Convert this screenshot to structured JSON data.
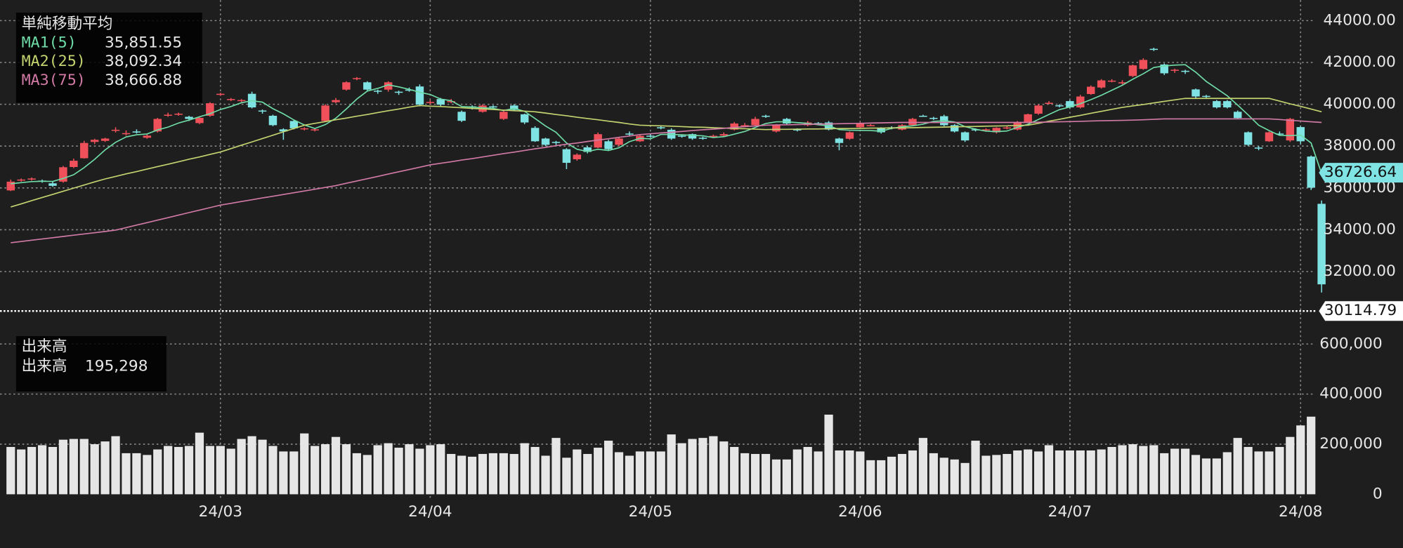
{
  "chart_data": {
    "type": "candlestick",
    "categories": [
      null,
      null,
      null,
      null,
      null,
      null,
      null,
      null,
      null,
      null,
      null,
      null,
      null,
      null,
      null,
      null,
      null,
      null,
      null,
      null,
      "24/03",
      null,
      null,
      null,
      null,
      null,
      null,
      null,
      null,
      null,
      null,
      null,
      null,
      null,
      null,
      null,
      null,
      null,
      null,
      null,
      "24/04",
      null,
      null,
      null,
      null,
      null,
      null,
      null,
      null,
      null,
      null,
      null,
      null,
      null,
      null,
      null,
      null,
      null,
      null,
      null,
      null,
      "24/05",
      null,
      null,
      null,
      null,
      null,
      null,
      null,
      null,
      null,
      null,
      null,
      null,
      null,
      null,
      null,
      null,
      null,
      null,
      null,
      "24/06",
      null,
      null,
      null,
      null,
      null,
      null,
      null,
      null,
      null,
      null,
      null,
      null,
      null,
      null,
      null,
      null,
      null,
      null,
      null,
      "24/07",
      null,
      null,
      null,
      null,
      null,
      null,
      null,
      null,
      null,
      null,
      null,
      null,
      null,
      null,
      null,
      null,
      null,
      null,
      null,
      null,
      null,
      "24/08",
      null,
      null
    ],
    "open": [
      35880,
      36350,
      36400,
      36350,
      36220,
      36300,
      37000,
      37420,
      38200,
      38250,
      38750,
      38600,
      38700,
      38400,
      38700,
      39450,
      39500,
      39400,
      39100,
      39450,
      40450,
      40200,
      40150,
      40500,
      39700,
      39450,
      38800,
      39200,
      38800,
      38750,
      39200,
      40100,
      40700,
      41200,
      41050,
      40650,
      40700,
      40600,
      40700,
      40850,
      40100,
      40250,
      40150,
      39640,
      39900,
      39640,
      39900,
      39300,
      39940,
      39520,
      38870,
      38360,
      38200,
      37850,
      37370,
      37940,
      37930,
      38230,
      38060,
      38600,
      38230,
      38500,
      38900,
      38780,
      38500,
      38570,
      38400,
      38450,
      38500,
      38790,
      39000,
      39000,
      39450,
      38700,
      39300,
      38800,
      39000,
      39100,
      39130,
      38360,
      38350,
      38900,
      39000,
      38870,
      38900,
      38790,
      39000,
      39450,
      39350,
      39430,
      39000,
      38660,
      38800,
      38780,
      38660,
      38870,
      38790,
      39130,
      39550,
      40050,
      39950,
      40150,
      39850,
      40490,
      40800,
      41100,
      41000,
      41350,
      41690,
      42650,
      41900,
      41600,
      41600,
      40710,
      40400,
      40150,
      40150,
      39640,
      38660,
      37930,
      38230,
      38600,
      38270,
      38910,
      37500,
      35240
    ],
    "high": [
      36400,
      36450,
      36500,
      36400,
      36300,
      37050,
      37400,
      38250,
      38350,
      38400,
      38900,
      38750,
      38800,
      38600,
      39350,
      39600,
      39600,
      39450,
      39400,
      40100,
      40550,
      40300,
      40250,
      40600,
      39750,
      39500,
      38850,
      39250,
      38900,
      38850,
      40000,
      40300,
      41100,
      41300,
      41100,
      40700,
      41100,
      40650,
      40800,
      40950,
      40200,
      40300,
      40250,
      39700,
      39950,
      40000,
      39950,
      39700,
      40000,
      39550,
      38950,
      38400,
      38250,
      37900,
      37650,
      38000,
      38650,
      38300,
      38400,
      38700,
      38550,
      38600,
      38950,
      38850,
      38550,
      38600,
      38450,
      38550,
      38650,
      39150,
      39100,
      39400,
      39500,
      39050,
      39350,
      38850,
      39200,
      39150,
      39200,
      38400,
      38700,
      39150,
      39050,
      38900,
      38950,
      39050,
      39350,
      39500,
      39400,
      39500,
      39050,
      38700,
      38850,
      38850,
      38900,
      38950,
      39200,
      39550,
      40000,
      40150,
      40000,
      40200,
      40450,
      40900,
      41200,
      41200,
      41150,
      41900,
      42200,
      42700,
      41950,
      41700,
      41650,
      40750,
      40450,
      40200,
      40200,
      39700,
      38700,
      38000,
      38700,
      38700,
      39350,
      38950,
      37550,
      35400
    ],
    "low": [
      35850,
      36300,
      36350,
      36250,
      36050,
      36250,
      36950,
      37400,
      38100,
      38200,
      38650,
      38500,
      38600,
      38350,
      38650,
      39400,
      39450,
      39200,
      39050,
      39400,
      40400,
      40150,
      40100,
      39800,
      39550,
      38950,
      38300,
      38800,
      38750,
      38700,
      39150,
      40050,
      40650,
      41150,
      40650,
      40500,
      40600,
      40450,
      40600,
      39900,
      40000,
      39900,
      40050,
      39150,
      39750,
      39600,
      39800,
      39250,
      39700,
      39050,
      38200,
      38000,
      38050,
      36900,
      37300,
      37650,
      37900,
      37800,
      38000,
      38500,
      38200,
      38400,
      38800,
      38300,
      38400,
      38300,
      38300,
      38400,
      38450,
      38750,
      38900,
      38950,
      39350,
      38650,
      39000,
      38700,
      38950,
      39000,
      38750,
      37800,
      38300,
      38850,
      38950,
      38600,
      38800,
      38750,
      38950,
      39400,
      39250,
      38950,
      38650,
      38200,
      38700,
      38700,
      38600,
      38800,
      38750,
      39100,
      39500,
      40000,
      39850,
      39800,
      39800,
      40450,
      40750,
      41050,
      40950,
      41300,
      41650,
      42550,
      41400,
      41500,
      41450,
      40300,
      40300,
      39800,
      39800,
      39300,
      38000,
      37800,
      38200,
      38500,
      38200,
      38100,
      35900,
      31000
    ],
    "close": [
      36300,
      36400,
      36450,
      36300,
      36100,
      36990,
      37300,
      38150,
      38300,
      38360,
      38780,
      38620,
      38650,
      38500,
      39300,
      39500,
      39550,
      39300,
      39350,
      40050,
      40500,
      40250,
      40200,
      39850,
      39650,
      39000,
      38700,
      38850,
      38850,
      38800,
      39940,
      40200,
      41050,
      41250,
      40700,
      40600,
      41050,
      40550,
      40650,
      39980,
      40110,
      39980,
      40150,
      39210,
      39850,
      39940,
      39850,
      39640,
      39730,
      39130,
      38230,
      38060,
      38150,
      37200,
      37590,
      37720,
      38570,
      37850,
      38360,
      38570,
      38490,
      38490,
      38870,
      38360,
      38490,
      38360,
      38360,
      38490,
      38570,
      39080,
      39000,
      39300,
      39430,
      39000,
      39080,
      38790,
      39130,
      39080,
      38790,
      38150,
      38660,
      39080,
      39000,
      38660,
      38870,
      39000,
      39300,
      39430,
      39300,
      39000,
      38700,
      38270,
      38790,
      38800,
      38870,
      38890,
      39130,
      39520,
      39940,
      40070,
      39940,
      39850,
      40370,
      40840,
      41140,
      41130,
      41050,
      41860,
      42120,
      42630,
      41480,
      41650,
      41560,
      40370,
      40370,
      39850,
      39850,
      39340,
      38060,
      37900,
      38660,
      38570,
      39300,
      38230,
      36010,
      31390
    ],
    "up_color": "#f0505a",
    "down_color": "#7fe3e3",
    "ylim": [
      29940,
      44980
    ],
    "yticks": [
      {
        "value": 32000,
        "label": "32000.00"
      },
      {
        "value": 34000,
        "label": "34000.00"
      },
      {
        "value": 36000,
        "label": "36000.00"
      },
      {
        "value": 38000,
        "label": "38000.00"
      },
      {
        "value": 40000,
        "label": "40000.00"
      },
      {
        "value": 42000,
        "label": "42000.00"
      },
      {
        "value": 44000,
        "label": "44000.00"
      }
    ],
    "grid": true,
    "legend_title": "単純移動平均",
    "series": [
      {
        "name": "MA1(5)",
        "color": "#6fdca8",
        "legend_value": {
          "value": 35851.55,
          "label": "35,851.55"
        },
        "values": [
          36200,
          36250,
          36300,
          36320,
          36310,
          36450,
          36630,
          36970,
          37370,
          37820,
          38180,
          38440,
          38540,
          38580,
          38770,
          38910,
          39100,
          39240,
          39400,
          39550,
          39750,
          39890,
          40070,
          40170,
          40100,
          39790,
          39540,
          39250,
          39010,
          38840,
          39030,
          39330,
          39770,
          40250,
          40630,
          40760,
          40930,
          40830,
          40710,
          40570,
          40470,
          40250,
          40170,
          39890,
          39860,
          39830,
          39800,
          39700,
          39800,
          39660,
          39320,
          38960,
          38660,
          38150,
          37850,
          37740,
          37850,
          37790,
          37920,
          38210,
          38370,
          38350,
          38560,
          38560,
          38540,
          38510,
          38490,
          38410,
          38450,
          38570,
          38700,
          38890,
          39080,
          39160,
          39160,
          39120,
          39090,
          39020,
          38970,
          38790,
          38760,
          38750,
          38740,
          38710,
          38850,
          38920,
          38970,
          39050,
          39180,
          39210,
          39150,
          38930,
          38810,
          38710,
          38690,
          38720,
          38900,
          39040,
          39270,
          39510,
          39740,
          39870,
          40030,
          40220,
          40430,
          40670,
          40910,
          41200,
          41460,
          41760,
          41830,
          41870,
          41890,
          41530,
          41090,
          40750,
          40410,
          39960,
          39490,
          39000,
          38740,
          38510,
          38500,
          38530,
          38150,
          36700
        ]
      },
      {
        "name": "MA2(25)",
        "color": "#c4d470",
        "legend_value": {
          "value": 38092.34,
          "label": "38,092.34"
        },
        "values": [
          35090,
          35240,
          35390,
          35540,
          35690,
          35840,
          35990,
          36140,
          36290,
          36430,
          36550,
          36670,
          36780,
          36900,
          37020,
          37130,
          37250,
          37370,
          37480,
          37600,
          37720,
          37880,
          38040,
          38200,
          38360,
          38520,
          38680,
          38840,
          39000,
          39090,
          39170,
          39260,
          39340,
          39430,
          39510,
          39600,
          39690,
          39770,
          39860,
          39940,
          39910,
          39890,
          39860,
          39830,
          39800,
          39780,
          39750,
          39720,
          39690,
          39670,
          39640,
          39580,
          39510,
          39450,
          39380,
          39320,
          39260,
          39190,
          39130,
          39060,
          39000,
          38980,
          38970,
          38950,
          38930,
          38910,
          38900,
          38880,
          38860,
          38840,
          38830,
          38810,
          38790,
          38800,
          38800,
          38810,
          38820,
          38820,
          38830,
          38840,
          38840,
          38850,
          38860,
          38860,
          38870,
          38870,
          38880,
          38890,
          38900,
          38910,
          38920,
          38930,
          38940,
          38950,
          38960,
          38970,
          38990,
          39000,
          39090,
          39190,
          39280,
          39380,
          39470,
          39570,
          39660,
          39760,
          39850,
          39920,
          39990,
          40060,
          40140,
          40210,
          40280,
          40280,
          40280,
          40280,
          40280,
          40280,
          40280,
          40280,
          40280,
          40150,
          40020,
          39900,
          39770,
          39640
        ]
      },
      {
        "name": "MA3(75)",
        "color": "#d27aa6",
        "legend_value": {
          "value": 38666.88,
          "label": "38,666.88"
        },
        "values": [
          33380,
          33440,
          33500,
          33560,
          33620,
          33680,
          33740,
          33800,
          33860,
          33920,
          33980,
          34100,
          34220,
          34340,
          34460,
          34580,
          34700,
          34820,
          34940,
          35060,
          35180,
          35265,
          35350,
          35435,
          35520,
          35600,
          35685,
          35770,
          35855,
          35940,
          36025,
          36110,
          36220,
          36330,
          36440,
          36550,
          36660,
          36770,
          36880,
          36990,
          37100,
          37180,
          37250,
          37330,
          37400,
          37480,
          37560,
          37640,
          37710,
          37790,
          37870,
          37940,
          38020,
          38090,
          38150,
          38220,
          38290,
          38350,
          38420,
          38480,
          38550,
          38590,
          38630,
          38660,
          38700,
          38740,
          38780,
          38810,
          38850,
          38890,
          38930,
          38960,
          39000,
          39010,
          39020,
          39030,
          39040,
          39050,
          39060,
          39070,
          39080,
          39090,
          39100,
          39110,
          39120,
          39130,
          39130,
          39130,
          39130,
          39130,
          39130,
          39130,
          39130,
          39130,
          39130,
          39130,
          39130,
          39130,
          39140,
          39150,
          39160,
          39170,
          39180,
          39200,
          39210,
          39220,
          39230,
          39240,
          39260,
          39280,
          39300,
          39300,
          39300,
          39300,
          39300,
          39300,
          39300,
          39300,
          39300,
          39300,
          39300,
          39270,
          39230,
          39200,
          39160,
          39130
        ]
      }
    ],
    "price_markers": [
      {
        "value": 36726.64,
        "label": "36726.64",
        "color": "#7fe3e3"
      },
      {
        "value": 30114.79,
        "label": "30114.79",
        "color": "#ffffff"
      }
    ],
    "volume": {
      "type": "bar",
      "title": "出来高",
      "name": "出来高",
      "legend_value": {
        "value": 195298,
        "label": "195,298"
      },
      "color": "#e6e6e6",
      "values": [
        189000,
        179000,
        189000,
        196000,
        189000,
        218000,
        221000,
        221000,
        200000,
        211000,
        232000,
        164000,
        164000,
        157000,
        179000,
        193000,
        189000,
        193000,
        246000,
        193000,
        193000,
        182000,
        221000,
        232000,
        218000,
        193000,
        171000,
        171000,
        243000,
        193000,
        200000,
        229000,
        200000,
        164000,
        157000,
        196000,
        204000,
        186000,
        200000,
        182000,
        196000,
        200000,
        161000,
        154000,
        150000,
        161000,
        164000,
        164000,
        161000,
        204000,
        189000,
        154000,
        225000,
        146000,
        179000,
        161000,
        186000,
        214000,
        168000,
        154000,
        171000,
        171000,
        171000,
        239000,
        204000,
        221000,
        225000,
        232000,
        211000,
        189000,
        164000,
        161000,
        161000,
        139000,
        139000,
        179000,
        189000,
        171000,
        318000,
        175000,
        175000,
        171000,
        136000,
        136000,
        150000,
        161000,
        175000,
        225000,
        164000,
        146000,
        139000,
        125000,
        214000,
        154000,
        157000,
        161000,
        175000,
        179000,
        171000,
        196000,
        175000,
        175000,
        175000,
        175000,
        179000,
        189000,
        196000,
        200000,
        193000,
        196000,
        164000,
        182000,
        182000,
        157000,
        143000,
        143000,
        168000,
        225000,
        189000,
        171000,
        171000,
        189000,
        229000,
        275000,
        310000,
        null
      ],
      "ylim": [
        -25000,
        653000
      ],
      "yticks": [
        0,
        {
          "value": 200000,
          "label": "200,000"
        },
        {
          "value": 400000,
          "label": "400,000"
        },
        {
          "value": 600000,
          "label": "600,000"
        }
      ]
    }
  }
}
